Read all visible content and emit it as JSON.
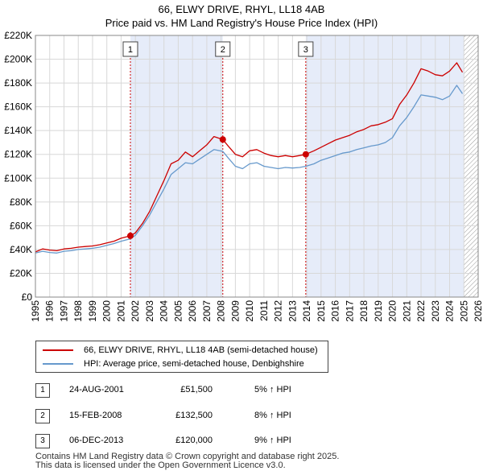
{
  "header": {
    "title_line1": "66, ELWY DRIVE, RHYL, LL18 4AB",
    "title_line2": "Price paid vs. HM Land Registry's House Price Index (HPI)"
  },
  "chart_data": {
    "type": "line",
    "title": "66, ELWY DRIVE, RHYL, LL18 4AB",
    "subtitle": "Price paid vs. HM Land Registry's House Price Index (HPI)",
    "xlabel": "",
    "ylabel": "",
    "xlim": [
      1995,
      2026
    ],
    "ylim": [
      0,
      220000
    ],
    "y_ticks": [
      0,
      20000,
      40000,
      60000,
      80000,
      100000,
      120000,
      140000,
      160000,
      180000,
      200000,
      220000
    ],
    "y_tick_labels": [
      "£0",
      "£20K",
      "£40K",
      "£60K",
      "£80K",
      "£100K",
      "£120K",
      "£140K",
      "£160K",
      "£180K",
      "£200K",
      "£220K"
    ],
    "x_ticks": [
      1995,
      1996,
      1997,
      1998,
      1999,
      2000,
      2001,
      2002,
      2003,
      2004,
      2005,
      2006,
      2007,
      2008,
      2009,
      2010,
      2011,
      2012,
      2013,
      2014,
      2015,
      2016,
      2017,
      2018,
      2019,
      2020,
      2021,
      2022,
      2023,
      2024,
      2025,
      2026
    ],
    "x_tick_labels": [
      "1995",
      "1996",
      "1997",
      "1998",
      "1999",
      "2000",
      "2001",
      "2002",
      "2003",
      "2004",
      "2005",
      "2006",
      "2007",
      "2008",
      "2009",
      "2010",
      "2011",
      "2012",
      "2013",
      "2014",
      "2015",
      "2016",
      "2017",
      "2018",
      "2019",
      "2020",
      "2021",
      "2022",
      "2023",
      "2024",
      "2025",
      "2026"
    ],
    "grid": true,
    "shaded_ranges": [
      [
        2001.65,
        2008.12
      ],
      [
        2013.93,
        2025.0
      ]
    ],
    "future_hatch_from": 2025.0,
    "series": [
      {
        "name": "66, ELWY DRIVE, RHYL, LL18 4AB (semi-detached house)",
        "color": "#cc0000",
        "points": [
          [
            1995.0,
            38000
          ],
          [
            1995.5,
            40500
          ],
          [
            1996.0,
            39500
          ],
          [
            1996.5,
            39000
          ],
          [
            1997.0,
            40500
          ],
          [
            1997.5,
            41000
          ],
          [
            1998.0,
            42000
          ],
          [
            1998.5,
            42500
          ],
          [
            1999.0,
            43000
          ],
          [
            1999.5,
            44000
          ],
          [
            2000.0,
            45500
          ],
          [
            2000.5,
            47000
          ],
          [
            2001.0,
            49500
          ],
          [
            2001.65,
            51500
          ],
          [
            2002.0,
            54000
          ],
          [
            2002.5,
            62000
          ],
          [
            2003.0,
            72000
          ],
          [
            2003.5,
            85000
          ],
          [
            2004.0,
            98000
          ],
          [
            2004.5,
            112000
          ],
          [
            2005.0,
            115000
          ],
          [
            2005.5,
            122000
          ],
          [
            2006.0,
            118000
          ],
          [
            2006.5,
            123000
          ],
          [
            2007.0,
            128000
          ],
          [
            2007.5,
            135000
          ],
          [
            2008.12,
            132500
          ],
          [
            2008.5,
            127000
          ],
          [
            2009.0,
            120000
          ],
          [
            2009.5,
            118000
          ],
          [
            2010.0,
            123000
          ],
          [
            2010.5,
            124000
          ],
          [
            2011.0,
            121000
          ],
          [
            2011.5,
            119000
          ],
          [
            2012.0,
            118000
          ],
          [
            2012.5,
            119000
          ],
          [
            2013.0,
            118000
          ],
          [
            2013.5,
            119000
          ],
          [
            2013.93,
            120000
          ],
          [
            2014.5,
            123000
          ],
          [
            2015.0,
            126000
          ],
          [
            2015.5,
            129000
          ],
          [
            2016.0,
            132000
          ],
          [
            2016.5,
            134000
          ],
          [
            2017.0,
            136000
          ],
          [
            2017.5,
            139000
          ],
          [
            2018.0,
            141000
          ],
          [
            2018.5,
            144000
          ],
          [
            2019.0,
            145000
          ],
          [
            2019.5,
            147000
          ],
          [
            2020.0,
            150000
          ],
          [
            2020.5,
            162000
          ],
          [
            2021.0,
            170000
          ],
          [
            2021.5,
            180000
          ],
          [
            2022.0,
            192000
          ],
          [
            2022.5,
            190000
          ],
          [
            2023.0,
            187000
          ],
          [
            2023.5,
            186000
          ],
          [
            2024.0,
            190000
          ],
          [
            2024.5,
            197000
          ],
          [
            2024.9,
            189000
          ]
        ]
      },
      {
        "name": "HPI: Average price, semi-detached house, Denbighshire",
        "color": "#6699cc",
        "points": [
          [
            1995.0,
            37000
          ],
          [
            1995.5,
            38500
          ],
          [
            1996.0,
            37500
          ],
          [
            1996.5,
            37000
          ],
          [
            1997.0,
            38500
          ],
          [
            1997.5,
            39000
          ],
          [
            1998.0,
            40000
          ],
          [
            1998.5,
            40500
          ],
          [
            1999.0,
            41000
          ],
          [
            1999.5,
            42000
          ],
          [
            2000.0,
            43500
          ],
          [
            2000.5,
            45000
          ],
          [
            2001.0,
            47000
          ],
          [
            2001.65,
            49000
          ],
          [
            2002.0,
            52000
          ],
          [
            2002.5,
            60000
          ],
          [
            2003.0,
            69000
          ],
          [
            2003.5,
            80000
          ],
          [
            2004.0,
            91000
          ],
          [
            2004.5,
            103000
          ],
          [
            2005.0,
            108000
          ],
          [
            2005.5,
            113000
          ],
          [
            2006.0,
            112000
          ],
          [
            2006.5,
            116000
          ],
          [
            2007.0,
            120000
          ],
          [
            2007.5,
            124000
          ],
          [
            2008.12,
            122500
          ],
          [
            2008.5,
            117000
          ],
          [
            2009.0,
            110000
          ],
          [
            2009.5,
            108000
          ],
          [
            2010.0,
            112000
          ],
          [
            2010.5,
            113000
          ],
          [
            2011.0,
            110000
          ],
          [
            2011.5,
            109000
          ],
          [
            2012.0,
            108000
          ],
          [
            2012.5,
            109000
          ],
          [
            2013.0,
            108500
          ],
          [
            2013.5,
            109000
          ],
          [
            2013.93,
            110000
          ],
          [
            2014.5,
            112000
          ],
          [
            2015.0,
            115000
          ],
          [
            2015.5,
            117000
          ],
          [
            2016.0,
            119000
          ],
          [
            2016.5,
            121000
          ],
          [
            2017.0,
            122000
          ],
          [
            2017.5,
            124000
          ],
          [
            2018.0,
            125500
          ],
          [
            2018.5,
            127000
          ],
          [
            2019.0,
            128000
          ],
          [
            2019.5,
            130000
          ],
          [
            2020.0,
            134000
          ],
          [
            2020.5,
            144000
          ],
          [
            2021.0,
            151000
          ],
          [
            2021.5,
            160000
          ],
          [
            2022.0,
            170000
          ],
          [
            2022.5,
            169000
          ],
          [
            2023.0,
            168000
          ],
          [
            2023.5,
            166000
          ],
          [
            2024.0,
            169000
          ],
          [
            2024.5,
            178000
          ],
          [
            2024.9,
            171000
          ]
        ]
      }
    ],
    "annotations": [
      {
        "label": "1",
        "x": 2001.65,
        "y": 51500
      },
      {
        "label": "2",
        "x": 2008.12,
        "y": 132500
      },
      {
        "label": "3",
        "x": 2013.93,
        "y": 120000
      }
    ]
  },
  "legend": {
    "property_label": "66, ELWY DRIVE, RHYL, LL18 4AB (semi-detached house)",
    "hpi_label": "HPI: Average price, semi-detached house, Denbighshire",
    "property_color": "#cc0000",
    "hpi_color": "#6699cc"
  },
  "sales": [
    {
      "num": "1",
      "date": "24-AUG-2001",
      "price": "£51,500",
      "hpi": "5% ↑ HPI"
    },
    {
      "num": "2",
      "date": "15-FEB-2008",
      "price": "£132,500",
      "hpi": "8% ↑ HPI"
    },
    {
      "num": "3",
      "date": "06-DEC-2013",
      "price": "£120,000",
      "hpi": "9% ↑ HPI"
    }
  ],
  "footer": {
    "line1": "Contains HM Land Registry data © Crown copyright and database right 2025.",
    "line2": "This data is licensed under the Open Government Licence v3.0."
  }
}
